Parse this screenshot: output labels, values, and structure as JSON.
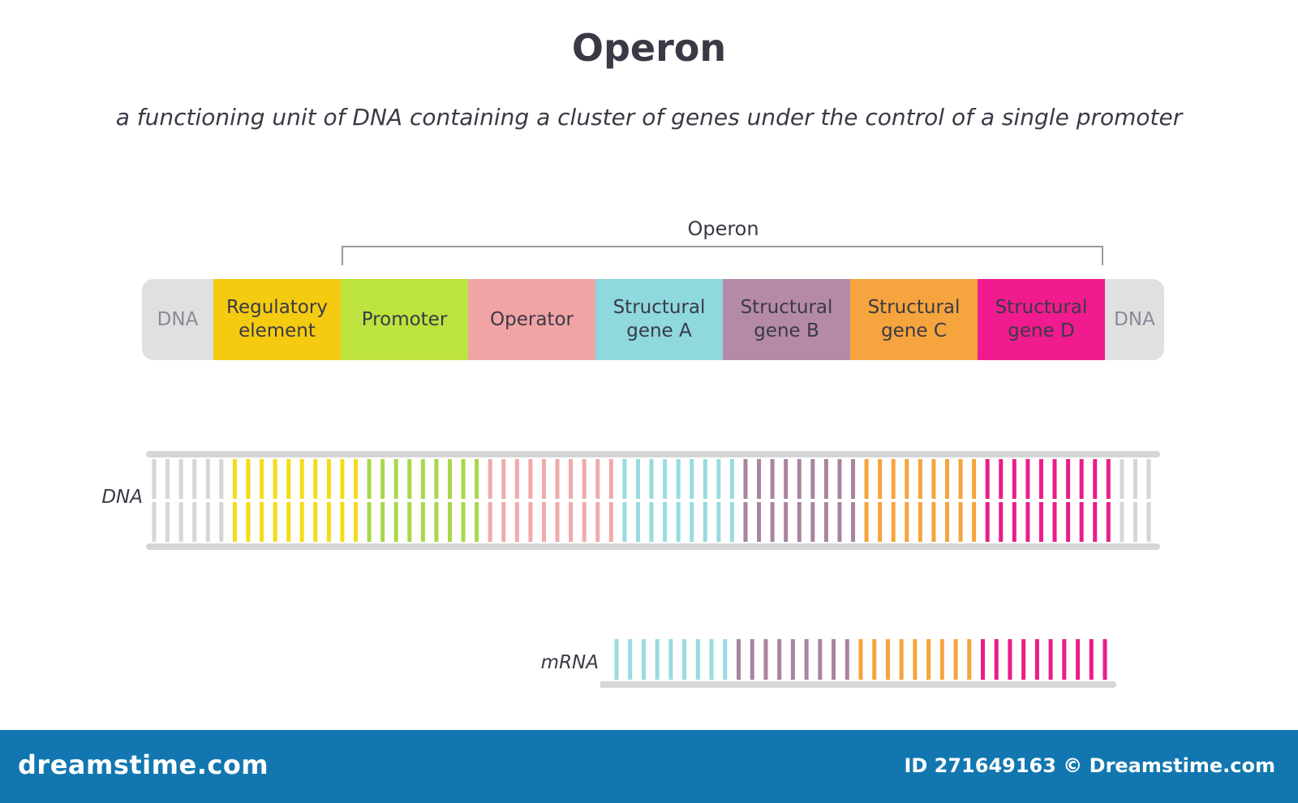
{
  "header": {
    "title": "Operon",
    "subtitle": "a functioning unit of DNA containing a cluster of genes under the control of a single promoter"
  },
  "operon_bracket_label": "Operon",
  "dna_tube": {
    "segments": [
      {
        "id": "dna-left",
        "lines": [
          "DNA"
        ],
        "color": "#e0e0e0",
        "text_color": "#8a8a96"
      },
      {
        "id": "regulatory-element",
        "lines": [
          "Regulatory",
          "element"
        ],
        "color": "#f5cb12",
        "text_color": "#3a3a46"
      },
      {
        "id": "promoter",
        "lines": [
          "Promoter"
        ],
        "color": "#bde33e",
        "text_color": "#3a3a46"
      },
      {
        "id": "operator",
        "lines": [
          "Operator"
        ],
        "color": "#f0a4a4",
        "text_color": "#3a3a46"
      },
      {
        "id": "structural-gene-a",
        "lines": [
          "Structural",
          "gene A"
        ],
        "color": "#8ed8de",
        "text_color": "#3a3a46"
      },
      {
        "id": "structural-gene-b",
        "lines": [
          "Structural",
          "gene B"
        ],
        "color": "#b48aa8",
        "text_color": "#3a3a46"
      },
      {
        "id": "structural-gene-c",
        "lines": [
          "Structural",
          "gene C"
        ],
        "color": "#f6a43e",
        "text_color": "#3a3a46"
      },
      {
        "id": "structural-gene-d",
        "lines": [
          "Structural",
          "gene D"
        ],
        "color": "#f01b8e",
        "text_color": "#3a3a46"
      },
      {
        "id": "dna-right",
        "lines": [
          "DNA"
        ],
        "color": "#e0e0e0",
        "text_color": "#8a8a96"
      }
    ]
  },
  "dna_ladder": {
    "label": "DNA",
    "backbone_color": "#d6d6d6",
    "regions": [
      {
        "name": "dna-left",
        "color": "#d6d6d6",
        "rungs": 6
      },
      {
        "name": "regulatory-element",
        "color": "#f5dc18",
        "rungs": 10
      },
      {
        "name": "promoter",
        "color": "#a8d84a",
        "rungs": 9
      },
      {
        "name": "operator",
        "color": "#f0aaaa",
        "rungs": 10
      },
      {
        "name": "structural-gene-a",
        "color": "#98dbe0",
        "rungs": 9
      },
      {
        "name": "structural-gene-b",
        "color": "#a8849e",
        "rungs": 9
      },
      {
        "name": "structural-gene-c",
        "color": "#f6a43e",
        "rungs": 9
      },
      {
        "name": "structural-gene-d",
        "color": "#ea1c8a",
        "rungs": 10
      },
      {
        "name": "dna-right",
        "color": "#d6d6d6",
        "rungs": 3
      }
    ]
  },
  "mrna": {
    "label": "mRNA",
    "backbone_color": "#d6d6d6",
    "regions": [
      {
        "name": "structural-gene-a",
        "color": "#98dbe0",
        "rungs": 9
      },
      {
        "name": "structural-gene-b",
        "color": "#a8849e",
        "rungs": 9
      },
      {
        "name": "structural-gene-c",
        "color": "#f6a43e",
        "rungs": 9
      },
      {
        "name": "structural-gene-d",
        "color": "#ea1c8a",
        "rungs": 10
      }
    ]
  },
  "footer": {
    "logo_text": "dreamstime.com",
    "id_text": "ID 271649163 © Dreamstime.com",
    "background": "#1277b0"
  }
}
